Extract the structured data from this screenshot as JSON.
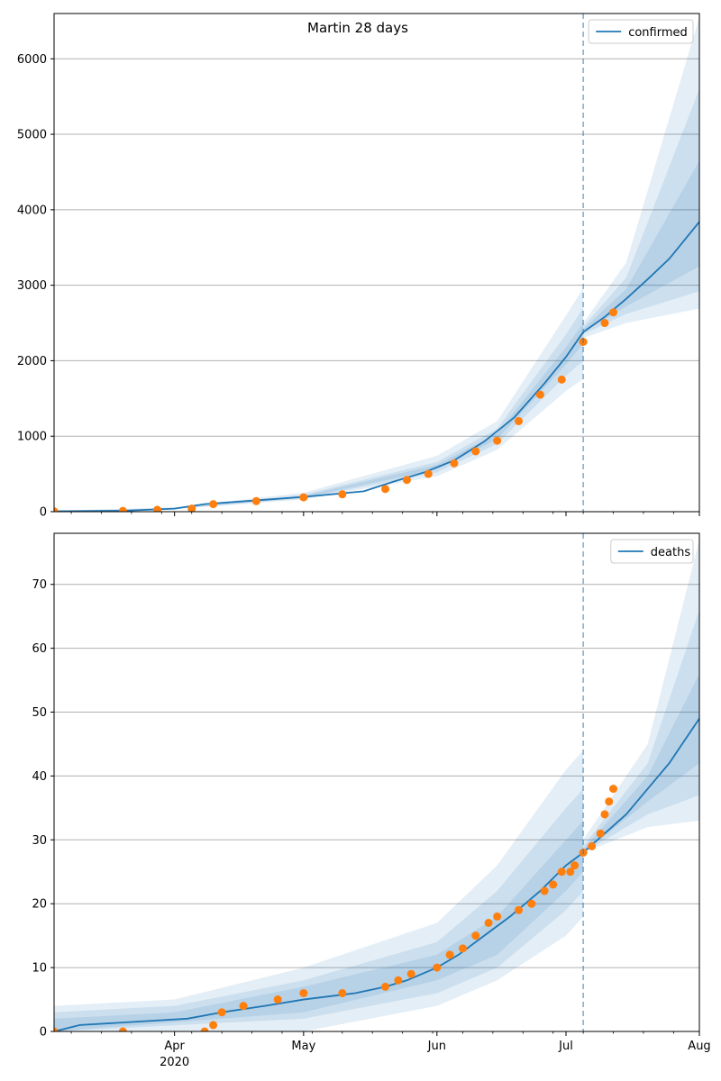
{
  "figure": {
    "title": "Martin 28 days"
  },
  "colors": {
    "model": "#1f77b4",
    "observed": "#ff7f0e",
    "band": "#1f77b4",
    "grid": "#b0b0b0",
    "vline": "#1f77b4"
  },
  "chart_data": [
    {
      "type": "line",
      "title": "Martin 28 days",
      "legend": {
        "label": "confirmed",
        "position": "top-right"
      },
      "grid": "horizontal",
      "xlim": [
        "2020-03-04",
        "2020-08-01"
      ],
      "ylim": [
        0,
        6600
      ],
      "xticks": [
        {
          "date": "2020-04-01",
          "label": "Apr",
          "sub": "2020"
        },
        {
          "date": "2020-05-01",
          "label": "May",
          "sub": ""
        },
        {
          "date": "2020-06-01",
          "label": "Jun",
          "sub": ""
        },
        {
          "date": "2020-07-01",
          "label": "Jul",
          "sub": ""
        },
        {
          "date": "2020-08-01",
          "label": "Aug",
          "sub": ""
        }
      ],
      "yticks": [
        0,
        1000,
        2000,
        3000,
        4000,
        5000,
        6000
      ],
      "forecast_start": "2020-07-05",
      "model_points": [
        [
          "2020-03-04",
          5
        ],
        [
          "2020-03-20",
          12
        ],
        [
          "2020-04-01",
          40
        ],
        [
          "2020-04-08",
          100
        ],
        [
          "2020-04-20",
          150
        ],
        [
          "2020-05-01",
          195
        ],
        [
          "2020-05-15",
          270
        ],
        [
          "2020-05-22",
          400
        ],
        [
          "2020-05-29",
          520
        ],
        [
          "2020-06-05",
          680
        ],
        [
          "2020-06-12",
          930
        ],
        [
          "2020-06-19",
          1250
        ],
        [
          "2020-06-26",
          1700
        ],
        [
          "2020-07-01",
          2050
        ],
        [
          "2020-07-05",
          2380
        ],
        [
          "2020-07-10",
          2580
        ],
        [
          "2020-07-15",
          2820
        ],
        [
          "2020-07-20",
          3080
        ],
        [
          "2020-07-25",
          3350
        ],
        [
          "2020-08-01",
          3840
        ]
      ],
      "bands": [
        {
          "lower": [
            [
              "2020-03-04",
              5
            ],
            [
              "2020-04-01",
              35
            ],
            [
              "2020-05-01",
              160
            ],
            [
              "2020-06-01",
              470
            ],
            [
              "2020-06-15",
              820
            ],
            [
              "2020-07-01",
              1600
            ],
            [
              "2020-07-05",
              1760
            ],
            [
              "2020-07-05",
              2300
            ],
            [
              "2020-07-15",
              2500
            ],
            [
              "2020-08-01",
              2690
            ]
          ],
          "upper": [
            [
              "2020-03-04",
              10
            ],
            [
              "2020-04-01",
              60
            ],
            [
              "2020-05-01",
              250
            ],
            [
              "2020-06-01",
              740
            ],
            [
              "2020-06-15",
              1200
            ],
            [
              "2020-07-01",
              2600
            ],
            [
              "2020-07-05",
              2960
            ],
            [
              "2020-07-05",
              2500
            ],
            [
              "2020-07-15",
              3300
            ],
            [
              "2020-08-01",
              6550
            ]
          ]
        },
        {
          "lower": [
            [
              "2020-03-04",
              5
            ],
            [
              "2020-04-01",
              37
            ],
            [
              "2020-05-01",
              175
            ],
            [
              "2020-06-01",
              520
            ],
            [
              "2020-06-15",
              900
            ],
            [
              "2020-07-01",
              1800
            ],
            [
              "2020-07-05",
              2000
            ],
            [
              "2020-07-05",
              2350
            ],
            [
              "2020-07-15",
              2620
            ],
            [
              "2020-08-01",
              2920
            ]
          ],
          "upper": [
            [
              "2020-03-04",
              8
            ],
            [
              "2020-04-01",
              50
            ],
            [
              "2020-05-01",
              225
            ],
            [
              "2020-06-01",
              660
            ],
            [
              "2020-06-15",
              1100
            ],
            [
              "2020-07-01",
              2350
            ],
            [
              "2020-07-05",
              2700
            ],
            [
              "2020-07-05",
              2450
            ],
            [
              "2020-07-15",
              3100
            ],
            [
              "2020-08-01",
              5600
            ]
          ]
        },
        {
          "lower": [
            [
              "2020-03-04",
              5
            ],
            [
              "2020-04-01",
              39
            ],
            [
              "2020-05-01",
              185
            ],
            [
              "2020-06-01",
              560
            ],
            [
              "2020-06-15",
              960
            ],
            [
              "2020-07-01",
              1950
            ],
            [
              "2020-07-05",
              2220
            ],
            [
              "2020-07-05",
              2380
            ],
            [
              "2020-07-15",
              2720
            ],
            [
              "2020-08-01",
              3250
            ]
          ],
          "upper": [
            [
              "2020-03-04",
              6
            ],
            [
              "2020-04-01",
              44
            ],
            [
              "2020-05-01",
              210
            ],
            [
              "2020-06-01",
              620
            ],
            [
              "2020-06-15",
              1040
            ],
            [
              "2020-07-01",
              2180
            ],
            [
              "2020-07-05",
              2500
            ],
            [
              "2020-07-05",
              2420
            ],
            [
              "2020-07-15",
              2950
            ],
            [
              "2020-08-01",
              4650
            ]
          ]
        }
      ],
      "observed_points": [
        [
          "2020-03-04",
          5
        ],
        [
          "2020-03-20",
          10
        ],
        [
          "2020-03-28",
          25
        ],
        [
          "2020-04-05",
          40
        ],
        [
          "2020-04-10",
          100
        ],
        [
          "2020-04-20",
          140
        ],
        [
          "2020-05-01",
          190
        ],
        [
          "2020-05-10",
          230
        ],
        [
          "2020-05-20",
          300
        ],
        [
          "2020-05-25",
          420
        ],
        [
          "2020-05-30",
          500
        ],
        [
          "2020-06-05",
          640
        ],
        [
          "2020-06-10",
          800
        ],
        [
          "2020-06-15",
          940
        ],
        [
          "2020-06-20",
          1200
        ],
        [
          "2020-06-25",
          1550
        ],
        [
          "2020-06-30",
          1750
        ],
        [
          "2020-07-05",
          2250
        ],
        [
          "2020-07-10",
          2500
        ],
        [
          "2020-07-12",
          2640
        ]
      ]
    },
    {
      "type": "line",
      "title": "",
      "legend": {
        "label": "deaths",
        "position": "top-right"
      },
      "grid": "horizontal",
      "xlim": [
        "2020-03-04",
        "2020-08-01"
      ],
      "ylim": [
        0,
        78
      ],
      "xticks": [
        {
          "date": "2020-04-01",
          "label": "Apr",
          "sub": "2020"
        },
        {
          "date": "2020-05-01",
          "label": "May",
          "sub": ""
        },
        {
          "date": "2020-06-01",
          "label": "Jun",
          "sub": ""
        },
        {
          "date": "2020-07-01",
          "label": "Jul",
          "sub": ""
        },
        {
          "date": "2020-08-01",
          "label": "Aug",
          "sub": ""
        }
      ],
      "yticks": [
        0,
        10,
        20,
        30,
        40,
        50,
        60,
        70
      ],
      "forecast_start": "2020-07-05",
      "model_points": [
        [
          "2020-03-04",
          0
        ],
        [
          "2020-03-10",
          1
        ],
        [
          "2020-04-04",
          2
        ],
        [
          "2020-04-12",
          3
        ],
        [
          "2020-04-22",
          4
        ],
        [
          "2020-05-01",
          5
        ],
        [
          "2020-05-13",
          6
        ],
        [
          "2020-05-20",
          7
        ],
        [
          "2020-05-25",
          8
        ],
        [
          "2020-06-01",
          10
        ],
        [
          "2020-06-06",
          12
        ],
        [
          "2020-06-12",
          15
        ],
        [
          "2020-06-18",
          18
        ],
        [
          "2020-06-25",
          22
        ],
        [
          "2020-07-01",
          26
        ],
        [
          "2020-07-05",
          28
        ],
        [
          "2020-07-10",
          31
        ],
        [
          "2020-07-15",
          34
        ],
        [
          "2020-07-20",
          38
        ],
        [
          "2020-07-25",
          42
        ],
        [
          "2020-08-01",
          49
        ]
      ],
      "bands": [
        {
          "lower": [
            [
              "2020-03-04",
              0
            ],
            [
              "2020-05-01",
              0
            ],
            [
              "2020-06-01",
              4
            ],
            [
              "2020-06-15",
              8
            ],
            [
              "2020-07-01",
              15
            ],
            [
              "2020-07-05",
              18
            ],
            [
              "2020-07-05",
              28
            ],
            [
              "2020-07-20",
              32
            ],
            [
              "2020-08-01",
              33
            ]
          ],
          "upper": [
            [
              "2020-03-04",
              4
            ],
            [
              "2020-04-01",
              5
            ],
            [
              "2020-05-01",
              10
            ],
            [
              "2020-06-01",
              17
            ],
            [
              "2020-06-15",
              26
            ],
            [
              "2020-07-01",
              41
            ],
            [
              "2020-07-05",
              44
            ],
            [
              "2020-07-05",
              30
            ],
            [
              "2020-07-20",
              45
            ],
            [
              "2020-08-01",
              77
            ]
          ]
        },
        {
          "lower": [
            [
              "2020-03-04",
              0
            ],
            [
              "2020-05-01",
              2
            ],
            [
              "2020-06-01",
              6
            ],
            [
              "2020-06-15",
              10
            ],
            [
              "2020-07-01",
              19
            ],
            [
              "2020-07-05",
              22
            ],
            [
              "2020-07-05",
              28
            ],
            [
              "2020-07-20",
              34
            ],
            [
              "2020-08-01",
              37
            ]
          ],
          "upper": [
            [
              "2020-03-04",
              3
            ],
            [
              "2020-04-01",
              4
            ],
            [
              "2020-05-01",
              8
            ],
            [
              "2020-06-01",
              14
            ],
            [
              "2020-06-15",
              22
            ],
            [
              "2020-07-01",
              35
            ],
            [
              "2020-07-05",
              38
            ],
            [
              "2020-07-05",
              29
            ],
            [
              "2020-07-20",
              42
            ],
            [
              "2020-08-01",
              66
            ]
          ]
        },
        {
          "lower": [
            [
              "2020-03-04",
              0
            ],
            [
              "2020-05-01",
              3
            ],
            [
              "2020-06-01",
              8
            ],
            [
              "2020-06-15",
              12
            ],
            [
              "2020-07-01",
              22
            ],
            [
              "2020-07-05",
              25
            ],
            [
              "2020-07-05",
              28
            ],
            [
              "2020-07-20",
              36
            ],
            [
              "2020-08-01",
              42
            ]
          ],
          "upper": [
            [
              "2020-03-04",
              2
            ],
            [
              "2020-04-01",
              3
            ],
            [
              "2020-05-01",
              7
            ],
            [
              "2020-06-01",
              12
            ],
            [
              "2020-06-15",
              18
            ],
            [
              "2020-07-01",
              30
            ],
            [
              "2020-07-05",
              33
            ],
            [
              "2020-07-05",
              28.5
            ],
            [
              "2020-07-20",
              40
            ],
            [
              "2020-08-01",
              56
            ]
          ]
        }
      ],
      "observed_points": [
        [
          "2020-03-04",
          0
        ],
        [
          "2020-03-20",
          0
        ],
        [
          "2020-04-08",
          0
        ],
        [
          "2020-04-10",
          1
        ],
        [
          "2020-04-12",
          3
        ],
        [
          "2020-04-17",
          4
        ],
        [
          "2020-04-25",
          5
        ],
        [
          "2020-05-01",
          6
        ],
        [
          "2020-05-10",
          6
        ],
        [
          "2020-05-20",
          7
        ],
        [
          "2020-05-23",
          8
        ],
        [
          "2020-05-26",
          9
        ],
        [
          "2020-06-01",
          10
        ],
        [
          "2020-06-04",
          12
        ],
        [
          "2020-06-07",
          13
        ],
        [
          "2020-06-10",
          15
        ],
        [
          "2020-06-13",
          17
        ],
        [
          "2020-06-15",
          18
        ],
        [
          "2020-06-20",
          19
        ],
        [
          "2020-06-23",
          20
        ],
        [
          "2020-06-26",
          22
        ],
        [
          "2020-06-28",
          23
        ],
        [
          "2020-06-30",
          25
        ],
        [
          "2020-07-02",
          25
        ],
        [
          "2020-07-03",
          26
        ],
        [
          "2020-07-05",
          28
        ],
        [
          "2020-07-07",
          29
        ],
        [
          "2020-07-09",
          31
        ],
        [
          "2020-07-10",
          34
        ],
        [
          "2020-07-11",
          36
        ],
        [
          "2020-07-12",
          38
        ]
      ]
    }
  ]
}
